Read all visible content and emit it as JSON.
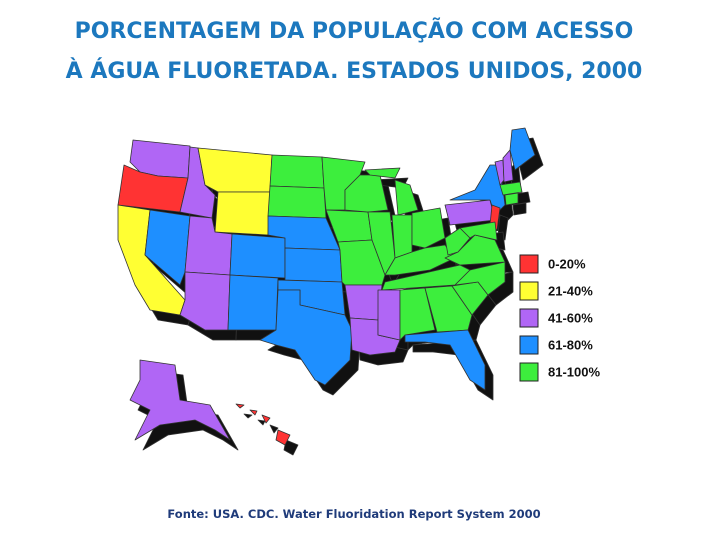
{
  "title": [
    "PORCENTAGEM DA POPULAÇÃO COM ACESSO",
    "À ÁGUA FLUORETADA. ESTADOS UNIDOS, 2000"
  ],
  "legend": [
    {
      "label": "0-20%",
      "color": "#ff3333"
    },
    {
      "label": "21-40%",
      "color": "#ffff33"
    },
    {
      "label": "41-60%",
      "color": "#b066f5"
    },
    {
      "label": "61-80%",
      "color": "#1e8fff"
    },
    {
      "label": "81-100%",
      "color": "#3dee3d"
    }
  ],
  "source": "Fonte: USA. CDC. Water Fluoridation Report System 2000"
}
